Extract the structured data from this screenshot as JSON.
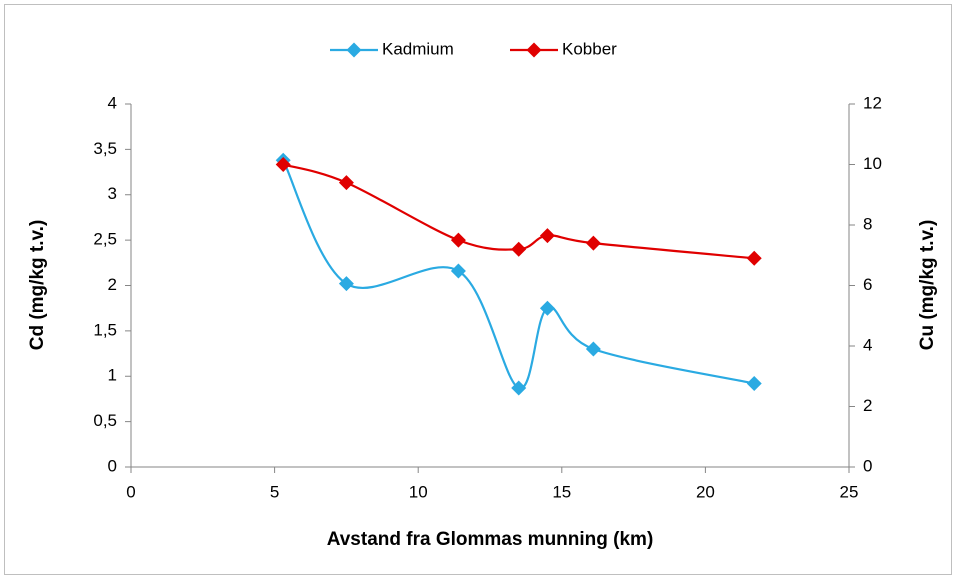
{
  "chart_data": {
    "type": "line",
    "x": [
      5.3,
      7.5,
      11.4,
      13.5,
      14.5,
      16.1,
      21.7
    ],
    "series": [
      {
        "name": "Kadmium",
        "color": "#2aaae2",
        "values": [
          3.38,
          2.02,
          2.16,
          0.87,
          1.75,
          1.3,
          0.92
        ]
      },
      {
        "name": "Kobber",
        "color": "#e00000",
        "axis": "y2",
        "values": [
          10.0,
          9.4,
          7.5,
          7.2,
          7.65,
          7.4,
          6.9
        ]
      }
    ],
    "x_label": "Avstand fra Glommas munning (km)",
    "y_label": "Cd (mg/kg t.v.)",
    "y2_label": "Cu (mg/kg t.v.)",
    "xlim": [
      0,
      25
    ],
    "xticks": [
      0,
      5,
      10,
      15,
      20,
      25
    ],
    "ylim": [
      0,
      4
    ],
    "yticks": [
      0,
      {
        "value": 0.5,
        "label": "0,5"
      },
      1,
      {
        "value": 1.5,
        "label": "1,5"
      },
      2,
      {
        "value": 2.5,
        "label": "2,5"
      },
      3,
      {
        "value": 3.5,
        "label": "3,5"
      },
      4
    ],
    "y2lim": [
      0,
      12
    ],
    "y2ticks": [
      0,
      2,
      4,
      6,
      8,
      10,
      12
    ],
    "smooth": true,
    "marker": "diamond",
    "legend": "top"
  }
}
